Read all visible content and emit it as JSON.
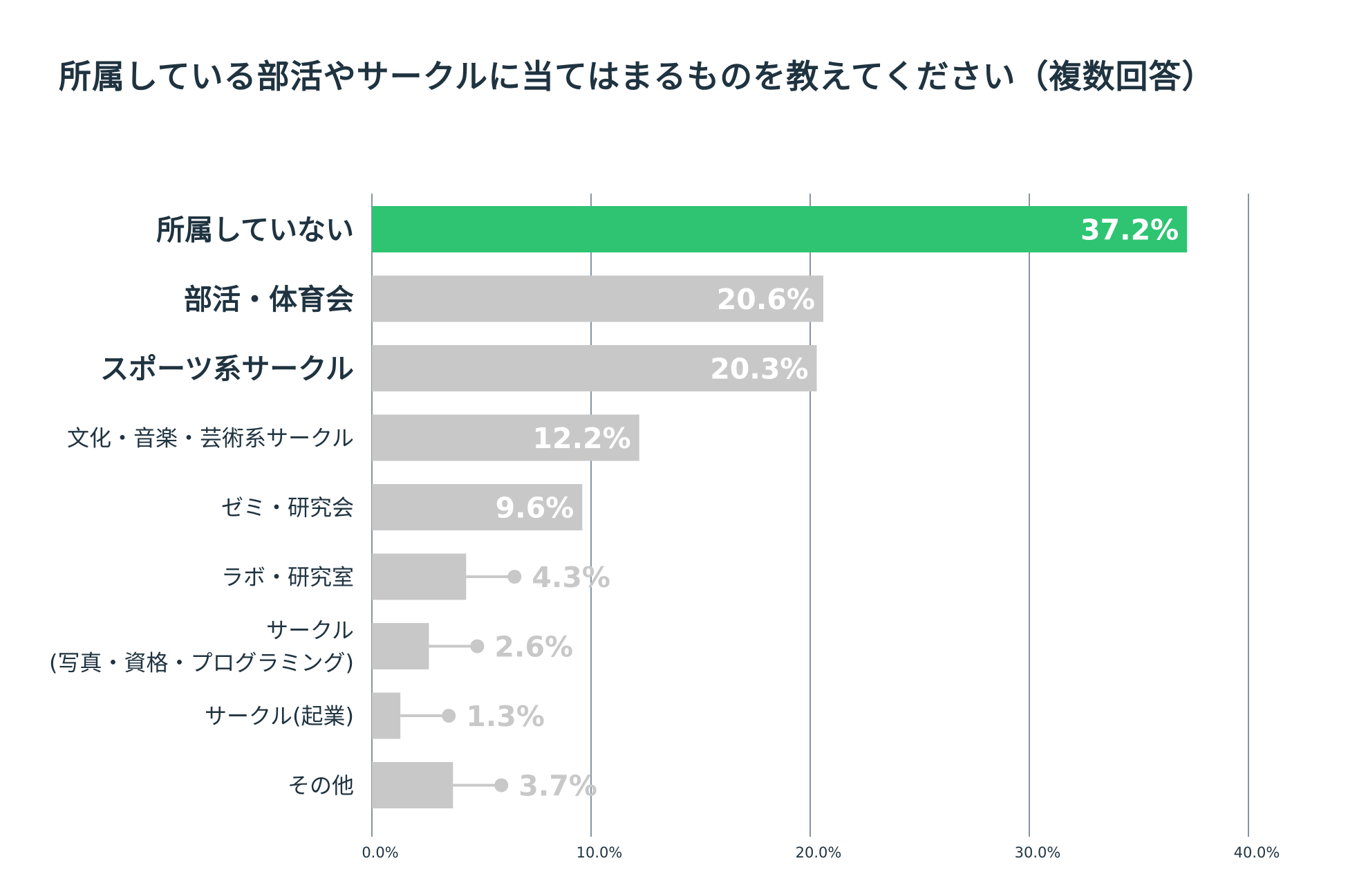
{
  "chart_data": {
    "type": "bar",
    "orientation": "horizontal",
    "title": "所属している部活やサークルに当てはまるものを教えてください（複数回答）",
    "categories": [
      "所属していない",
      "部活・体育会",
      "スポーツ系サークル",
      "文化・音楽・芸術系サークル",
      "ゼミ・研究会",
      "ラボ・研究室",
      "サークル\n(写真・資格・プログラミング)",
      "サークル(起業)",
      "その他"
    ],
    "values": [
      37.2,
      20.6,
      20.3,
      12.2,
      9.6,
      4.3,
      2.6,
      1.3,
      3.7
    ],
    "value_labels": [
      "37.2%",
      "20.6%",
      "20.3%",
      "12.2%",
      "9.6%",
      "4.3%",
      "2.6%",
      "1.3%",
      "3.7%"
    ],
    "bold_categories": [
      true,
      true,
      true,
      false,
      false,
      false,
      false,
      false,
      false
    ],
    "highlight_index": 0,
    "xlim": [
      0,
      40
    ],
    "xticks": [
      0,
      10,
      20,
      30,
      40
    ],
    "xtick_labels": [
      "0.0%",
      "10.0%",
      "20.0%",
      "30.0%",
      "40.0%"
    ],
    "xlabel": "",
    "ylabel": "",
    "grid": true,
    "colors": {
      "highlight": "#2ec472",
      "bar": "#c8c8c8",
      "grid": "#5f7080",
      "category_text": "#1f3340",
      "tick_text": "#1f3340",
      "inside_label": "#ffffff",
      "outside_label": "#c8c8c8"
    }
  }
}
